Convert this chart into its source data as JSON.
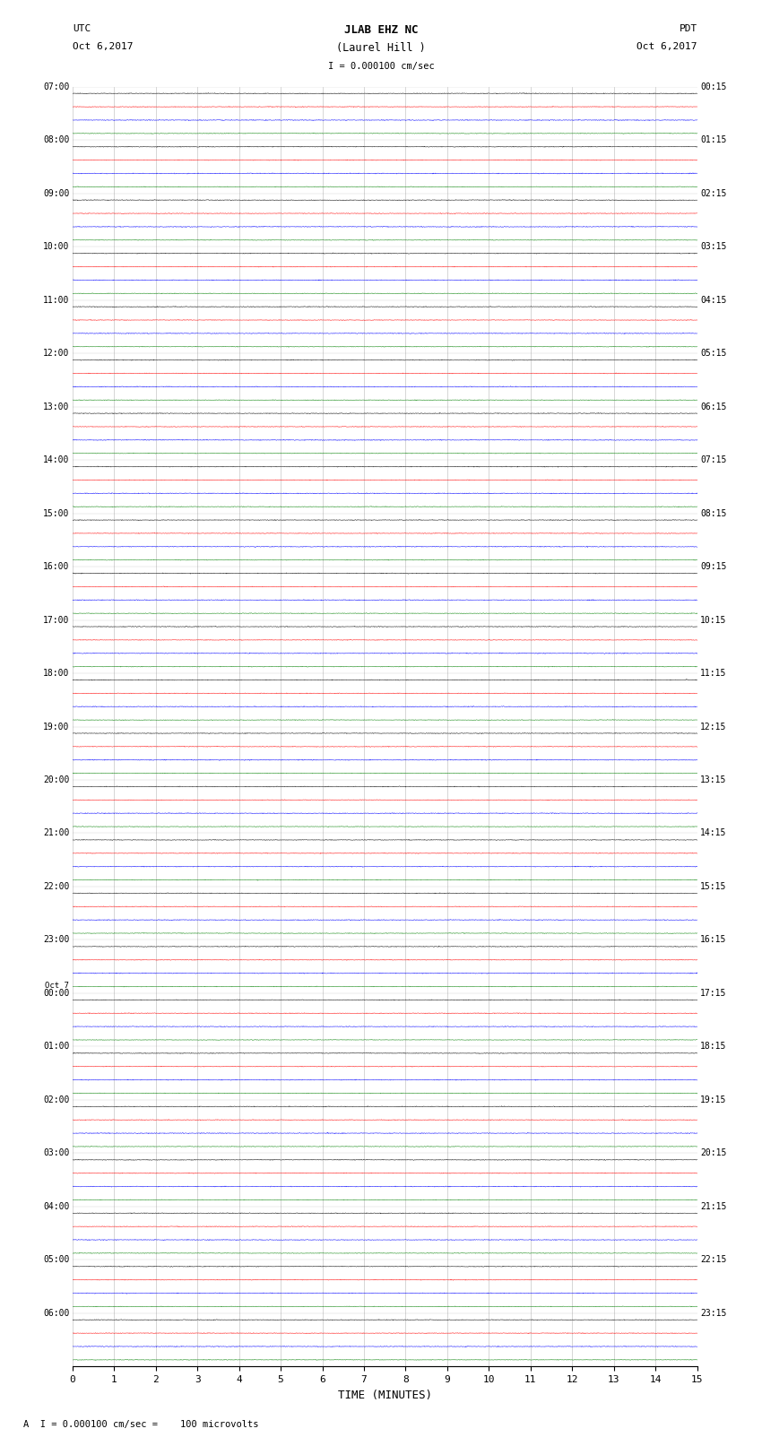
{
  "title_line1": "JLAB EHZ NC",
  "title_line2": "(Laurel Hill )",
  "scale_text": "I = 0.000100 cm/sec",
  "left_header_line1": "UTC",
  "left_header_line2": "Oct 6,2017",
  "right_header_line1": "PDT",
  "right_header_line2": "Oct 6,2017",
  "xlabel": "TIME (MINUTES)",
  "footer": "A  I = 0.000100 cm/sec =    100 microvolts",
  "bg_color": "white",
  "colors": [
    "black",
    "red",
    "blue",
    "green"
  ],
  "x_ticks": [
    0,
    1,
    2,
    3,
    4,
    5,
    6,
    7,
    8,
    9,
    10,
    11,
    12,
    13,
    14,
    15
  ],
  "n_hours": 24,
  "trace_amp": 0.012,
  "left_time_labels": [
    "07:00",
    "08:00",
    "09:00",
    "10:00",
    "11:00",
    "12:00",
    "13:00",
    "14:00",
    "15:00",
    "16:00",
    "17:00",
    "18:00",
    "19:00",
    "20:00",
    "21:00",
    "22:00",
    "23:00",
    "Oct 7\n00:00",
    "01:00",
    "02:00",
    "03:00",
    "04:00",
    "05:00",
    "06:00"
  ],
  "right_time_labels": [
    "00:15",
    "01:15",
    "02:15",
    "03:15",
    "04:15",
    "05:15",
    "06:15",
    "07:15",
    "08:15",
    "09:15",
    "10:15",
    "11:15",
    "12:15",
    "13:15",
    "14:15",
    "15:15",
    "16:15",
    "17:15",
    "18:15",
    "19:15",
    "20:15",
    "21:15",
    "22:15",
    "23:15"
  ],
  "n_pts": 1800
}
